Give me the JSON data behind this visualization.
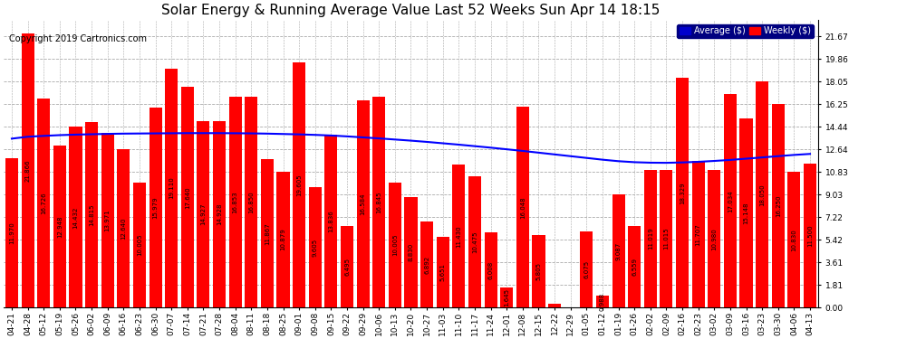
{
  "title": "Solar Energy & Running Average Value Last 52 Weeks Sun Apr 14 18:15",
  "copyright": "Copyright 2019 Cartronics.com",
  "categories": [
    "04-21",
    "04-28",
    "05-12",
    "05-19",
    "05-26",
    "06-02",
    "06-09",
    "06-16",
    "06-23",
    "06-30",
    "07-07",
    "07-14",
    "07-21",
    "07-28",
    "08-04",
    "08-11",
    "08-18",
    "08-25",
    "09-01",
    "09-08",
    "09-15",
    "09-22",
    "09-29",
    "10-06",
    "10-13",
    "10-20",
    "10-27",
    "11-03",
    "11-10",
    "11-17",
    "11-24",
    "12-01",
    "12-08",
    "12-15",
    "12-22",
    "12-29",
    "01-05",
    "01-12",
    "01-19",
    "01-26",
    "02-02",
    "02-09",
    "02-16",
    "02-23",
    "03-02",
    "03-09",
    "03-16",
    "03-23",
    "03-30",
    "04-06",
    "04-13"
  ],
  "weekly_values": [
    11.97,
    21.866,
    16.726,
    12.948,
    14.432,
    14.815,
    13.971,
    12.64,
    10.005,
    15.979,
    19.11,
    17.64,
    14.927,
    14.928,
    16.853,
    16.85,
    11.867,
    10.879,
    19.605,
    9.605,
    13.836,
    6.495,
    16.584,
    16.845,
    10.005,
    8.83,
    6.892,
    5.651,
    11.43,
    10.475,
    6.008,
    1.645,
    16.048,
    5.805,
    0.332,
    0.002,
    6.075,
    0.988,
    9.087,
    6.559,
    11.019,
    11.015,
    18.329,
    11.707,
    10.98,
    17.034,
    15.148,
    18.05,
    16.25,
    10.83,
    11.5
  ],
  "average_values": [
    13.5,
    13.65,
    13.72,
    13.78,
    13.82,
    13.85,
    13.88,
    13.9,
    13.91,
    13.92,
    13.93,
    13.94,
    13.94,
    13.94,
    13.93,
    13.92,
    13.9,
    13.87,
    13.84,
    13.8,
    13.75,
    13.68,
    13.6,
    13.52,
    13.43,
    13.34,
    13.24,
    13.13,
    13.02,
    12.9,
    12.78,
    12.65,
    12.52,
    12.38,
    12.24,
    12.1,
    11.96,
    11.82,
    11.7,
    11.62,
    11.58,
    11.57,
    11.6,
    11.65,
    11.72,
    11.8,
    11.9,
    12.0,
    12.1,
    12.2,
    12.28
  ],
  "bar_color": "#ff0000",
  "avg_line_color": "#0000ff",
  "background_color": "#ffffff",
  "plot_bg_color": "#ffffff",
  "grid_color": "#aaaaaa",
  "yticks": [
    0.0,
    1.81,
    3.61,
    5.42,
    7.22,
    9.03,
    10.83,
    12.64,
    14.44,
    16.25,
    18.05,
    19.86,
    21.67
  ],
  "ylabel_right": true,
  "legend_avg_label": "Average ($)",
  "legend_weekly_label": "Weekly ($)",
  "legend_avg_color": "#0000cd",
  "legend_weekly_color": "#ff0000",
  "title_fontsize": 11,
  "copyright_fontsize": 7,
  "tick_fontsize": 6.5,
  "value_fontsize": 5.0
}
